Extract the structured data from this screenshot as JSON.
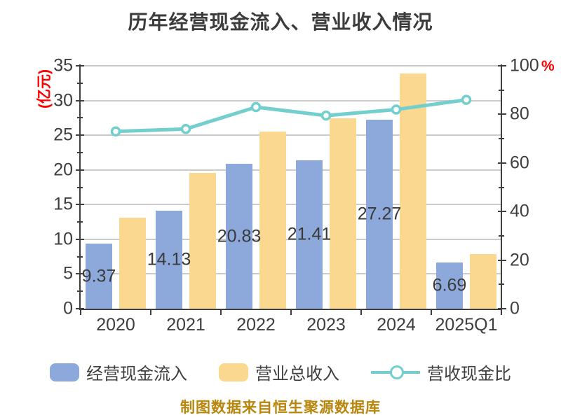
{
  "title": "历年经营现金流入、营业收入情况",
  "footer": "制图数据来自恒生聚源数据库",
  "left_axis": {
    "unit": "(亿元)",
    "min": 0,
    "max": 35,
    "step": 5,
    "unit_color": "#fe0000"
  },
  "right_axis": {
    "unit": "%",
    "min": 0,
    "max": 100,
    "step": 20,
    "unit_color": "#fe0000"
  },
  "legend": {
    "items": [
      {
        "label": "经营现金流入",
        "type": "bar",
        "color": "#8da9dc"
      },
      {
        "label": "营业总收入",
        "type": "bar",
        "color": "#fbd88f"
      },
      {
        "label": "营收现金比",
        "type": "line",
        "color": "#72cfce"
      }
    ],
    "position": "bottom"
  },
  "colors": {
    "bar_blue": "#8da9dc",
    "bar_yellow": "#fbd88f",
    "line_teal": "#72cfce",
    "grid": "#cbcbcb",
    "axis": "#3e3e3e",
    "text": "#3c3c3c",
    "accent_red": "#fe0000",
    "footer_gold": "#b8860b"
  },
  "chart_data": {
    "type": "bar",
    "subtype": "grouped bars with overlay line",
    "title": "历年经营现金流入、营业收入情况",
    "categories": [
      "2020",
      "2021",
      "2022",
      "2023",
      "2024",
      "2025Q1"
    ],
    "series": [
      {
        "name": "经营现金流入",
        "type": "bar",
        "axis": "left",
        "color": "#8da9dc",
        "values": [
          9.37,
          14.13,
          20.83,
          21.41,
          27.27,
          6.69
        ],
        "labels": [
          "9.37",
          "14.13",
          "20.83",
          "21.41",
          "27.27",
          "6.69"
        ]
      },
      {
        "name": "营业总收入",
        "type": "bar",
        "axis": "left",
        "color": "#fbd88f",
        "values": [
          13.1,
          19.6,
          25.5,
          27.4,
          33.9,
          7.9
        ]
      },
      {
        "name": "营收现金比",
        "type": "line",
        "axis": "right",
        "color": "#72cfce",
        "marker": "circle-white-fill",
        "values": [
          73,
          74,
          83,
          79.5,
          82,
          86
        ]
      }
    ],
    "ylabel_left": "(亿元)",
    "ylabel_right": "%",
    "ylim_left": [
      0,
      35
    ],
    "ylim_right": [
      0,
      100
    ],
    "grid": true,
    "legend_position": "bottom"
  }
}
